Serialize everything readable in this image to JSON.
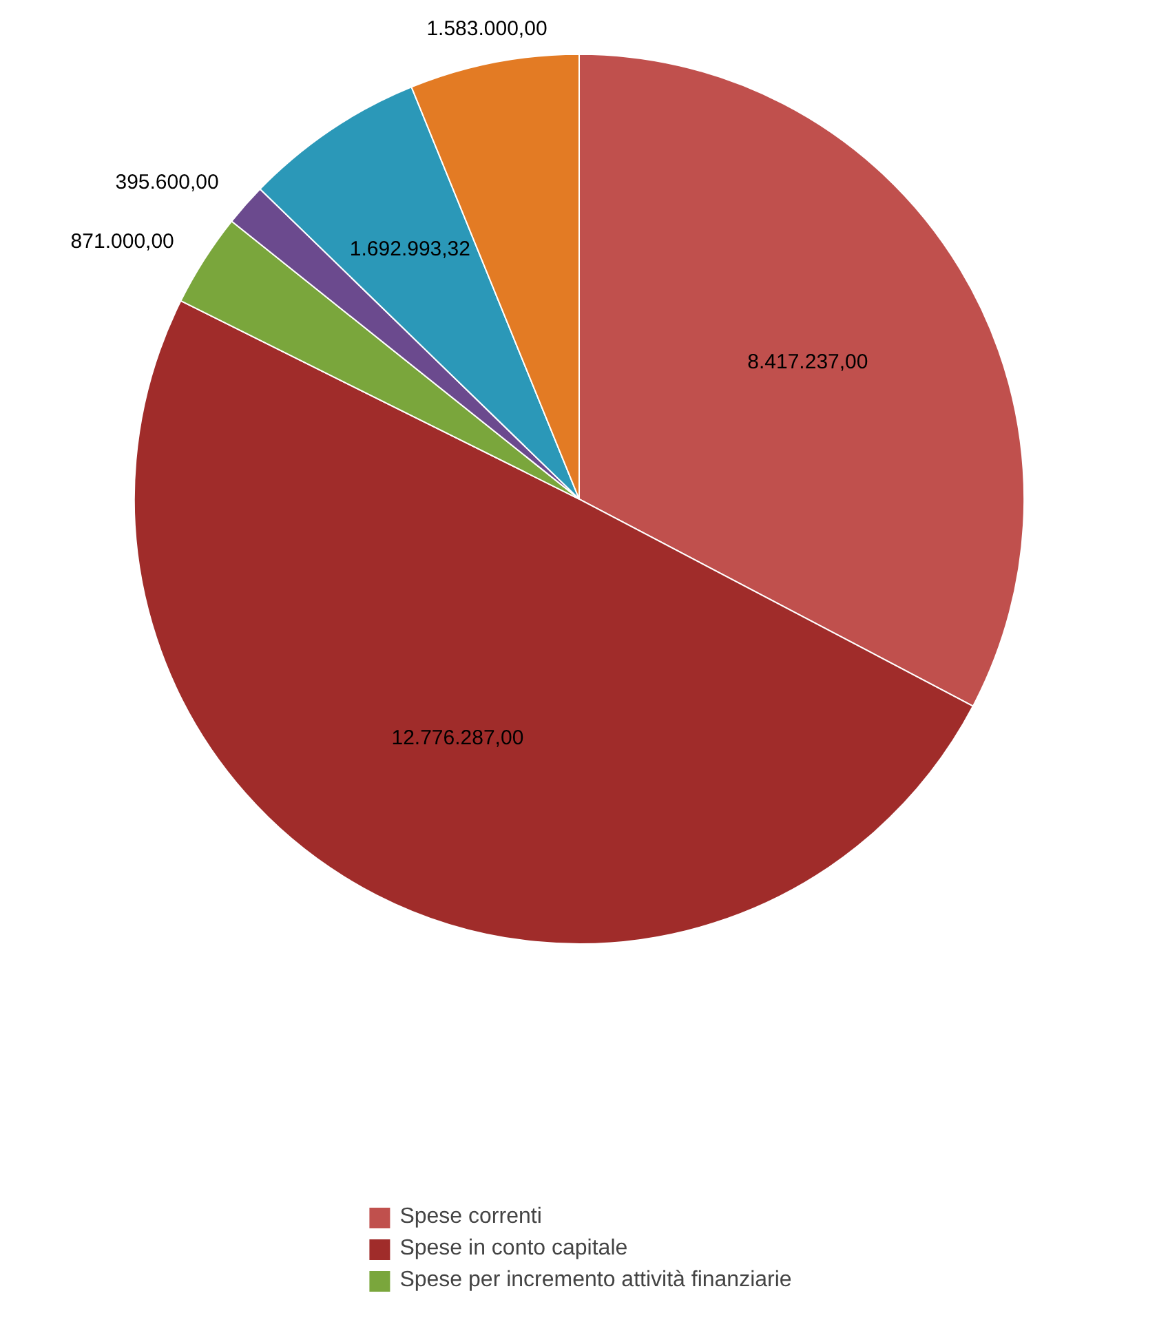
{
  "chart_data": {
    "type": "pie",
    "categories": [
      "Spese correnti",
      "Spese in conto capitale",
      "Spese per incremento attività finanziarie",
      null,
      null,
      null
    ],
    "values": [
      8417237.0,
      12776287.0,
      871000.0,
      395600.0,
      1692993.32,
      1583000.0
    ],
    "colors": [
      "#c0504d",
      "#a02c2a",
      "#7aa63c",
      "#6b4a8e",
      "#2b98b8",
      "#e37b24"
    ],
    "value_labels": [
      "8.417.237,00",
      "12.776.287,00",
      "871.000,00",
      "395.600,00",
      "1.692.993,32",
      "1.583.000,00"
    ],
    "legend": "bottom"
  }
}
